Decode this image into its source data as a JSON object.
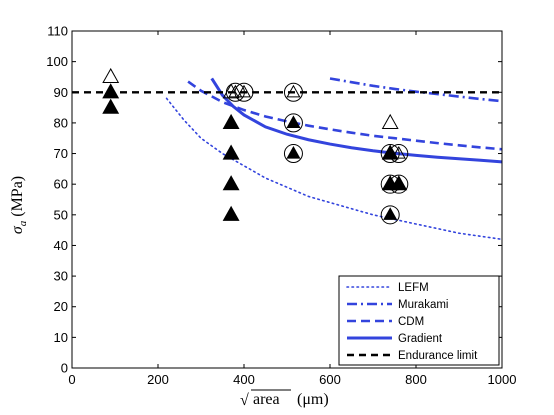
{
  "chart_data": {
    "type": "scatter",
    "xlabel_prefix": "√",
    "xlabel_radicand": "area",
    "xlabel_unit": "(μm)",
    "ylabel_symbol": "σ",
    "ylabel_subscript": "a",
    "ylabel_unit": "(MPa)",
    "xlim": [
      0,
      1000
    ],
    "ylim": [
      0,
      110
    ],
    "xticks": [
      0,
      200,
      400,
      600,
      800,
      1000
    ],
    "yticks": [
      0,
      10,
      20,
      30,
      40,
      50,
      60,
      70,
      80,
      90,
      100,
      110
    ],
    "grid": false,
    "legend_position": "bottom-right",
    "series": [
      {
        "name": "LEFM",
        "style": "dotted",
        "color": "#3344dd",
        "points": [
          [
            220,
            88
          ],
          [
            260,
            81
          ],
          [
            300,
            75
          ],
          [
            350,
            70
          ],
          [
            400,
            66
          ],
          [
            450,
            62
          ],
          [
            500,
            59
          ],
          [
            550,
            56
          ],
          [
            600,
            54
          ],
          [
            650,
            52
          ],
          [
            700,
            50
          ],
          [
            750,
            48.5
          ],
          [
            800,
            47
          ],
          [
            850,
            45.5
          ],
          [
            900,
            44
          ],
          [
            950,
            43
          ],
          [
            1000,
            42
          ]
        ]
      },
      {
        "name": "Murakami",
        "style": "dashdot",
        "color": "#3344dd",
        "points": [
          [
            600,
            94.5
          ],
          [
            650,
            93.3
          ],
          [
            700,
            92.1
          ],
          [
            750,
            91.1
          ],
          [
            800,
            90.2
          ],
          [
            850,
            89.4
          ],
          [
            900,
            88.6
          ],
          [
            950,
            87.8
          ],
          [
            1000,
            87.1
          ]
        ]
      },
      {
        "name": "CDM",
        "style": "dashed",
        "color": "#3344dd",
        "points": [
          [
            270,
            93.5
          ],
          [
            300,
            90.5
          ],
          [
            350,
            86.8
          ],
          [
            400,
            84.2
          ],
          [
            450,
            82.1
          ],
          [
            500,
            80.5
          ],
          [
            550,
            79.1
          ],
          [
            600,
            77.9
          ],
          [
            650,
            76.8
          ],
          [
            700,
            75.8
          ],
          [
            750,
            75
          ],
          [
            800,
            74.2
          ],
          [
            850,
            73.4
          ],
          [
            900,
            72.7
          ],
          [
            950,
            72
          ],
          [
            1000,
            71.4
          ]
        ]
      },
      {
        "name": "Gradient",
        "style": "solid",
        "color": "#3344dd",
        "points": [
          [
            325,
            94.5
          ],
          [
            350,
            89
          ],
          [
            375,
            85.4
          ],
          [
            400,
            82.6
          ],
          [
            450,
            78.7
          ],
          [
            500,
            76.3
          ],
          [
            550,
            74.5
          ],
          [
            600,
            73.1
          ],
          [
            650,
            71.9
          ],
          [
            700,
            70.9
          ],
          [
            750,
            70.1
          ],
          [
            800,
            69.4
          ],
          [
            850,
            68.8
          ],
          [
            900,
            68.3
          ],
          [
            950,
            67.8
          ],
          [
            1000,
            67.3
          ]
        ]
      },
      {
        "name": "Endurance limit",
        "style": "dashed-black",
        "color": "#000000",
        "points": [
          [
            0,
            90
          ],
          [
            1000,
            90
          ]
        ]
      }
    ],
    "markers": {
      "open_triangle": [
        [
          90,
          95
        ],
        [
          370,
          90
        ],
        [
          740,
          80
        ]
      ],
      "filled_triangle": [
        [
          90,
          90
        ],
        [
          90,
          85
        ],
        [
          370,
          80
        ],
        [
          370,
          70
        ],
        [
          370,
          60
        ],
        [
          370,
          50
        ],
        [
          740,
          70
        ],
        [
          740,
          60
        ],
        [
          760,
          60
        ]
      ],
      "circle_open_triangle": [
        [
          380,
          90
        ],
        [
          400,
          90
        ],
        [
          515,
          90
        ],
        [
          760,
          70
        ]
      ],
      "circle_filled_triangle": [
        [
          515,
          80
        ],
        [
          515,
          70
        ],
        [
          740,
          70
        ],
        [
          740,
          60
        ],
        [
          760,
          60
        ],
        [
          740,
          50
        ]
      ]
    }
  }
}
